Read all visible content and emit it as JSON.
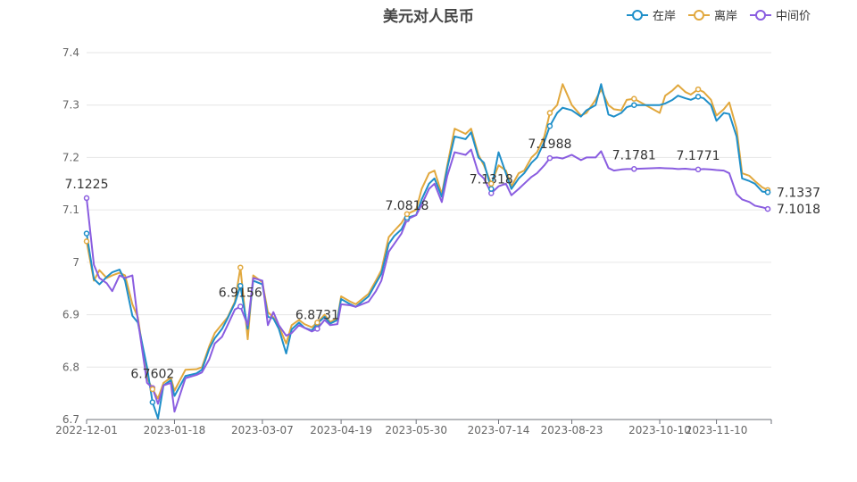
{
  "chart_data": {
    "type": "line",
    "title": "美元对人民币",
    "xlabel": "",
    "ylabel": "",
    "ylim": [
      6.7,
      7.4
    ],
    "yticks": [
      6.7,
      6.8,
      6.9,
      7,
      7.1,
      7.2,
      7.3,
      7.4
    ],
    "ytick_labels": [
      "6.7",
      "6.8",
      "6.9",
      "7",
      "7.1",
      "7.2",
      "7.3",
      "7.4"
    ],
    "x": [
      "2022-12-01",
      "2022-12-05",
      "2022-12-08",
      "2022-12-12",
      "2022-12-15",
      "2022-12-19",
      "2022-12-22",
      "2022-12-26",
      "2022-12-29",
      "2023-01-03",
      "2023-01-06",
      "2023-01-09",
      "2023-01-12",
      "2023-01-16",
      "2023-01-18",
      "2023-01-24",
      "2023-01-30",
      "2023-02-02",
      "2023-02-06",
      "2023-02-09",
      "2023-02-13",
      "2023-02-16",
      "2023-02-20",
      "2023-02-23",
      "2023-02-27",
      "2023-03-02",
      "2023-03-07",
      "2023-03-10",
      "2023-03-13",
      "2023-03-16",
      "2023-03-20",
      "2023-03-23",
      "2023-03-27",
      "2023-03-30",
      "2023-04-03",
      "2023-04-06",
      "2023-04-10",
      "2023-04-13",
      "2023-04-17",
      "2023-04-19",
      "2023-04-24",
      "2023-04-27",
      "2023-05-04",
      "2023-05-08",
      "2023-05-11",
      "2023-05-15",
      "2023-05-18",
      "2023-05-22",
      "2023-05-25",
      "2023-05-30",
      "2023-06-02",
      "2023-06-06",
      "2023-06-09",
      "2023-06-13",
      "2023-06-16",
      "2023-06-20",
      "2023-06-26",
      "2023-06-29",
      "2023-07-03",
      "2023-07-06",
      "2023-07-10",
      "2023-07-14",
      "2023-07-18",
      "2023-07-21",
      "2023-07-25",
      "2023-07-28",
      "2023-08-01",
      "2023-08-04",
      "2023-08-08",
      "2023-08-11",
      "2023-08-15",
      "2023-08-18",
      "2023-08-23",
      "2023-08-28",
      "2023-08-31",
      "2023-09-05",
      "2023-09-08",
      "2023-09-12",
      "2023-09-15",
      "2023-09-19",
      "2023-09-22",
      "2023-09-26",
      "2023-10-10",
      "2023-10-13",
      "2023-10-17",
      "2023-10-20",
      "2023-10-24",
      "2023-10-27",
      "2023-10-31",
      "2023-11-03",
      "2023-11-07",
      "2023-11-10",
      "2023-11-14",
      "2023-11-17",
      "2023-11-21",
      "2023-11-24",
      "2023-11-28",
      "2023-12-01",
      "2023-12-05",
      "2023-12-08"
    ],
    "x_tick_labels": [
      "2022-12-01",
      "2023-01-18",
      "2023-03-07",
      "2023-04-19",
      "2023-05-30",
      "2023-07-14",
      "2023-08-23",
      "2023-10-10",
      "2023-11-10"
    ],
    "grid": true,
    "legend": "top-right",
    "series": [
      {
        "name": "在岸",
        "color": "#1f8fc9",
        "values": [
          7.055,
          6.968,
          6.958,
          6.972,
          6.981,
          6.986,
          6.965,
          6.898,
          6.885,
          6.8,
          6.733,
          6.702,
          6.765,
          6.775,
          6.745,
          6.783,
          6.788,
          6.795,
          6.835,
          6.855,
          6.873,
          6.893,
          6.922,
          6.955,
          6.873,
          6.965,
          6.958,
          6.896,
          6.893,
          6.873,
          6.826,
          6.872,
          6.885,
          6.875,
          6.87,
          6.883,
          6.896,
          6.883,
          6.89,
          6.93,
          6.92,
          6.915,
          6.935,
          6.96,
          6.978,
          7.035,
          7.05,
          7.063,
          7.085,
          7.09,
          7.12,
          7.15,
          7.16,
          7.125,
          7.18,
          7.24,
          7.235,
          7.248,
          7.2,
          7.19,
          7.14,
          7.21,
          7.17,
          7.14,
          7.16,
          7.17,
          7.19,
          7.2,
          7.23,
          7.26,
          7.285,
          7.295,
          7.29,
          7.278,
          7.29,
          7.3,
          7.34,
          7.282,
          7.278,
          7.285,
          7.296,
          7.3,
          7.3,
          7.303,
          7.31,
          7.318,
          7.313,
          7.31,
          7.316,
          7.313,
          7.3,
          7.27,
          7.285,
          7.283,
          7.24,
          7.16,
          7.155,
          7.15,
          7.135,
          7.1337
        ]
      },
      {
        "name": "离岸",
        "color": "#e1a83e",
        "values": [
          7.04,
          6.965,
          6.985,
          6.97,
          6.975,
          6.98,
          6.975,
          6.92,
          6.895,
          6.78,
          6.758,
          6.74,
          6.77,
          6.78,
          6.755,
          6.795,
          6.796,
          6.8,
          6.84,
          6.865,
          6.882,
          6.895,
          6.925,
          6.99,
          6.853,
          6.975,
          6.962,
          6.905,
          6.895,
          6.878,
          6.845,
          6.88,
          6.89,
          6.882,
          6.876,
          6.885,
          6.9,
          6.886,
          6.893,
          6.935,
          6.925,
          6.92,
          6.94,
          6.965,
          6.985,
          7.048,
          7.06,
          7.075,
          7.092,
          7.1,
          7.14,
          7.17,
          7.175,
          7.13,
          7.185,
          7.255,
          7.245,
          7.255,
          7.205,
          7.185,
          7.15,
          7.185,
          7.175,
          7.145,
          7.17,
          7.175,
          7.2,
          7.21,
          7.24,
          7.285,
          7.3,
          7.34,
          7.3,
          7.28,
          7.285,
          7.31,
          7.33,
          7.3,
          7.292,
          7.29,
          7.31,
          7.312,
          7.285,
          7.318,
          7.328,
          7.338,
          7.325,
          7.32,
          7.33,
          7.325,
          7.31,
          7.28,
          7.292,
          7.305,
          7.255,
          7.17,
          7.165,
          7.155,
          7.143,
          7.138
        ]
      },
      {
        "name": "中间价",
        "color": "#8a5de0",
        "values": [
          7.1225,
          6.995,
          6.97,
          6.96,
          6.945,
          6.975,
          6.97,
          6.975,
          6.89,
          6.77,
          6.7602,
          6.73,
          6.765,
          6.77,
          6.715,
          6.779,
          6.785,
          6.79,
          6.815,
          6.845,
          6.858,
          6.88,
          6.91,
          6.9156,
          6.88,
          6.97,
          6.965,
          6.88,
          6.905,
          6.88,
          6.86,
          6.865,
          6.88,
          6.875,
          6.868,
          6.8731,
          6.89,
          6.88,
          6.882,
          6.92,
          6.918,
          6.915,
          6.925,
          6.945,
          6.965,
          7.02,
          7.035,
          7.055,
          7.0818,
          7.09,
          7.11,
          7.14,
          7.15,
          7.115,
          7.165,
          7.21,
          7.205,
          7.215,
          7.17,
          7.16,
          7.1318,
          7.145,
          7.15,
          7.128,
          7.14,
          7.15,
          7.163,
          7.17,
          7.185,
          7.1988,
          7.2,
          7.198,
          7.205,
          7.195,
          7.2,
          7.2,
          7.212,
          7.18,
          7.175,
          7.177,
          7.178,
          7.1781,
          7.18,
          7.1795,
          7.179,
          7.178,
          7.1785,
          7.1775,
          7.1771,
          7.178,
          7.177,
          7.176,
          7.175,
          7.17,
          7.13,
          7.12,
          7.115,
          7.108,
          7.105,
          7.1018
        ]
      }
    ],
    "annotations": [
      {
        "series": 2,
        "index": 0,
        "label": "7.1225"
      },
      {
        "series": 2,
        "index": 10,
        "label": "6.7602"
      },
      {
        "series": 2,
        "index": 23,
        "label": "6.9156"
      },
      {
        "series": 2,
        "index": 35,
        "label": "6.8731"
      },
      {
        "series": 2,
        "index": 48,
        "label": "7.0818"
      },
      {
        "series": 2,
        "index": 60,
        "label": "7.1318"
      },
      {
        "series": 2,
        "index": 69,
        "label": "7.1988"
      },
      {
        "series": 2,
        "index": 81,
        "label": "7.1781"
      },
      {
        "series": 2,
        "index": 88,
        "label": "7.1771"
      }
    ],
    "end_labels": [
      {
        "series": 0,
        "label": "7.1337"
      },
      {
        "series": 2,
        "label": "7.1018"
      }
    ]
  }
}
